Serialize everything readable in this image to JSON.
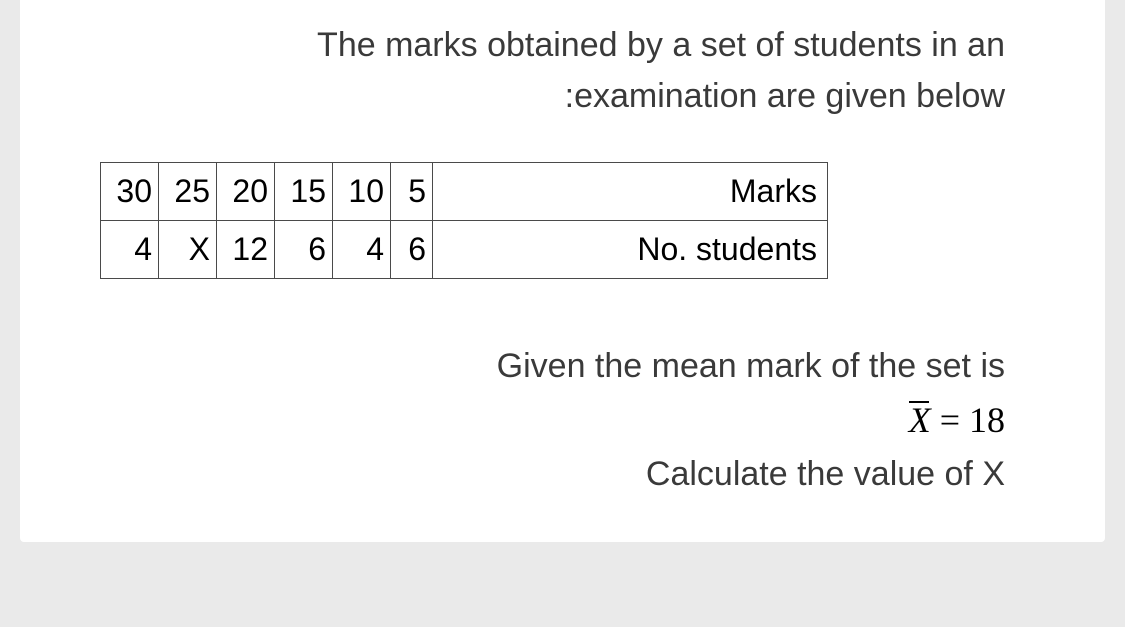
{
  "intro_line1": "The marks obtained by a set of students in an",
  "intro_line2": ":examination are given below",
  "table": {
    "row1_label": "Marks",
    "row1_values": [
      "30",
      "25",
      "20",
      "15",
      "10",
      "5"
    ],
    "row2_label": "No. students",
    "row2_values": [
      "4",
      "X",
      "12",
      "6",
      "4",
      "6"
    ]
  },
  "given_text": "Given the mean mark of the set is",
  "formula_lhs": "X",
  "formula_eq": " = 18",
  "calc_text": "Calculate the value of X"
}
